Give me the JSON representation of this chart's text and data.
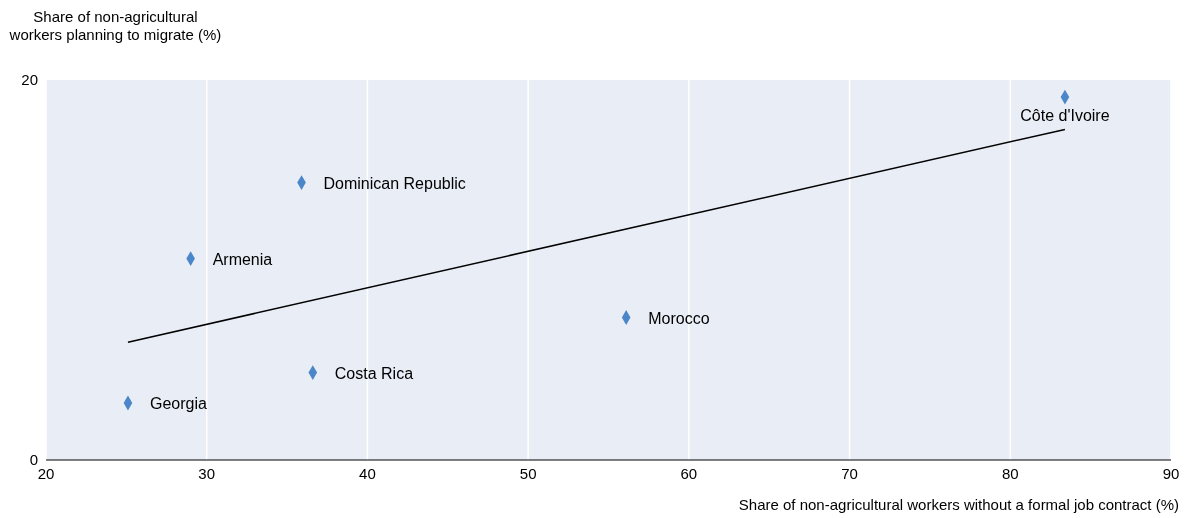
{
  "chart_data": {
    "type": "scatter",
    "ylabel": "Share of non-agricultural workers planning to migrate (%)",
    "xlabel": "Share of non-agricultural workers without a formal job contract (%)",
    "xlim": [
      20,
      90
    ],
    "xticks": [
      20,
      30,
      40,
      50,
      60,
      70,
      80,
      90
    ],
    "ylim": [
      0,
      20
    ],
    "yticks": [
      0,
      20
    ],
    "grid": "x",
    "series": [
      {
        "color": "#4a86c8",
        "marker": "diamond",
        "x": [
          83.4,
          35.9,
          29.0,
          56.1,
          36.6,
          25.1
        ],
        "values": [
          19.1,
          14.6,
          10.6,
          7.5,
          4.6,
          3.0
        ]
      },
      {
        "type": "line",
        "color": "#000000",
        "marker": "none",
        "x": [
          25.1,
          83.4
        ],
        "values": [
          6.2,
          17.4
        ]
      }
    ],
    "annotations": [
      {
        "text": "Côte d'Ivoire",
        "x": 83.4,
        "y": 19.1
      },
      {
        "text": "Dominican Republic",
        "x": 35.9,
        "y": 14.6
      },
      {
        "text": "Armenia",
        "x": 29.0,
        "y": 10.6
      },
      {
        "text": "Morocco",
        "x": 56.1,
        "y": 7.5
      },
      {
        "text": "Costa Rica",
        "x": 36.6,
        "y": 4.6
      },
      {
        "text": "Georgia",
        "x": 25.1,
        "y": 3.0
      }
    ]
  }
}
